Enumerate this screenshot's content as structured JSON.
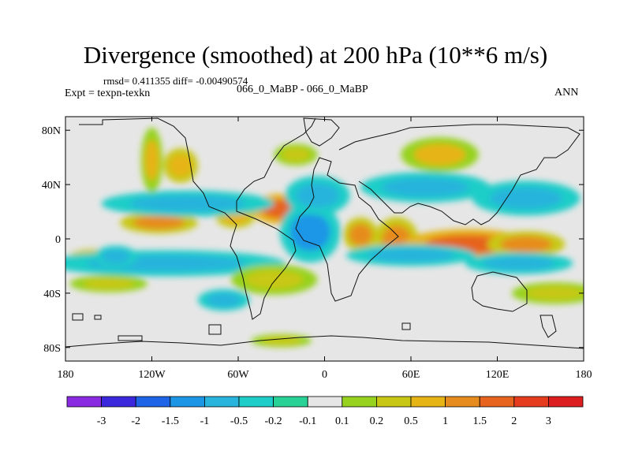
{
  "header": {
    "title": "Divergence (smoothed) at 200 hPa (10**6 m/s)",
    "stats": "rmsd= 0.411355 diff= -0.00490574",
    "expt": "Expt = texpn-texkn",
    "case": "066_0_MaBP - 066_0_MaBP",
    "season": "ANN"
  },
  "chart_data": {
    "type": "heatmap",
    "title": "Divergence (smoothed) at 200 hPa (10**6 m/s)",
    "xlabel": "",
    "ylabel": "",
    "xlim": [
      -180,
      180
    ],
    "ylim": [
      -90,
      90
    ],
    "x_ticks": [
      {
        "value": -180,
        "label": "180"
      },
      {
        "value": -120,
        "label": "120W"
      },
      {
        "value": -60,
        "label": "60W"
      },
      {
        "value": 0,
        "label": "0"
      },
      {
        "value": 60,
        "label": "60E"
      },
      {
        "value": 120,
        "label": "120E"
      },
      {
        "value": 180,
        "label": "180"
      }
    ],
    "y_ticks": [
      {
        "value": 80,
        "label": "80N"
      },
      {
        "value": 40,
        "label": "40N"
      },
      {
        "value": 0,
        "label": "0"
      },
      {
        "value": -40,
        "label": "40S"
      },
      {
        "value": -80,
        "label": "80S"
      }
    ],
    "colorbar": {
      "labels": [
        "-3",
        "-2",
        "-1.5",
        "-1",
        "-0.5",
        "-0.2",
        "-0.1",
        "0.1",
        "0.2",
        "0.5",
        "1",
        "1.5",
        "2",
        "3"
      ],
      "colors": [
        "#8a2be2",
        "#3c28dc",
        "#1e64e6",
        "#1e96e6",
        "#28b4dc",
        "#1ecdc8",
        "#28d296",
        "#e6e6e6",
        "#96d21e",
        "#c8c814",
        "#e6b414",
        "#e68c1e",
        "#e6641e",
        "#e63c1e",
        "#dc1e1e"
      ]
    },
    "features": [
      {
        "lon": -30,
        "lat": 22,
        "rx": 14,
        "ry": 7,
        "value": 1.7
      },
      {
        "lon": -115,
        "lat": 12,
        "rx": 18,
        "ry": 5,
        "value": 1.2
      },
      {
        "lon": -62,
        "lat": 16,
        "rx": 9,
        "ry": 5,
        "value": 0.6
      },
      {
        "lon": -10,
        "lat": 5,
        "rx": 14,
        "ry": 14,
        "value": -1.2
      },
      {
        "lon": 25,
        "lat": 3,
        "rx": 8,
        "ry": 8,
        "value": 1.2
      },
      {
        "lon": 50,
        "lat": 0,
        "rx": 10,
        "ry": 10,
        "value": 1.2
      },
      {
        "lon": 100,
        "lat": -4,
        "rx": 30,
        "ry": 7,
        "value": 1.6
      },
      {
        "lon": 140,
        "lat": -4,
        "rx": 18,
        "ry": 6,
        "value": 1.3
      },
      {
        "lon": -160,
        "lat": -14,
        "rx": 12,
        "ry": 4,
        "value": 0.6
      },
      {
        "lon": -95,
        "lat": 26,
        "rx": 40,
        "ry": 6,
        "value": -0.6
      },
      {
        "lon": -5,
        "lat": 32,
        "rx": 15,
        "ry": 9,
        "value": -0.8
      },
      {
        "lon": 70,
        "lat": 38,
        "rx": 30,
        "ry": 7,
        "value": -0.8
      },
      {
        "lon": 140,
        "lat": 30,
        "rx": 25,
        "ry": 8,
        "value": -0.6
      },
      {
        "lon": -110,
        "lat": -18,
        "rx": 55,
        "ry": 6,
        "value": -0.9
      },
      {
        "lon": -145,
        "lat": -13,
        "rx": 10,
        "ry": 5,
        "value": -0.6
      },
      {
        "lon": 60,
        "lat": -12,
        "rx": 30,
        "ry": 5,
        "value": -0.6
      },
      {
        "lon": 135,
        "lat": -18,
        "rx": 25,
        "ry": 5,
        "value": -0.6
      },
      {
        "lon": -100,
        "lat": 54,
        "rx": 8,
        "ry": 8,
        "value": 0.6
      },
      {
        "lon": -120,
        "lat": 58,
        "rx": 5,
        "ry": 15,
        "value": 0.5
      },
      {
        "lon": 80,
        "lat": 62,
        "rx": 18,
        "ry": 8,
        "value": 0.5
      },
      {
        "lon": -20,
        "lat": 62,
        "rx": 10,
        "ry": 5,
        "value": 0.3
      },
      {
        "lon": -35,
        "lat": -30,
        "rx": 20,
        "ry": 7,
        "value": 0.4
      },
      {
        "lon": -150,
        "lat": -33,
        "rx": 18,
        "ry": 4,
        "value": 0.4
      },
      {
        "lon": 160,
        "lat": -40,
        "rx": 20,
        "ry": 5,
        "value": 0.3
      },
      {
        "lon": -70,
        "lat": -45,
        "rx": 12,
        "ry": 5,
        "value": -0.6
      },
      {
        "lon": -30,
        "lat": -75,
        "rx": 14,
        "ry": 3,
        "value": 0.4
      }
    ]
  }
}
